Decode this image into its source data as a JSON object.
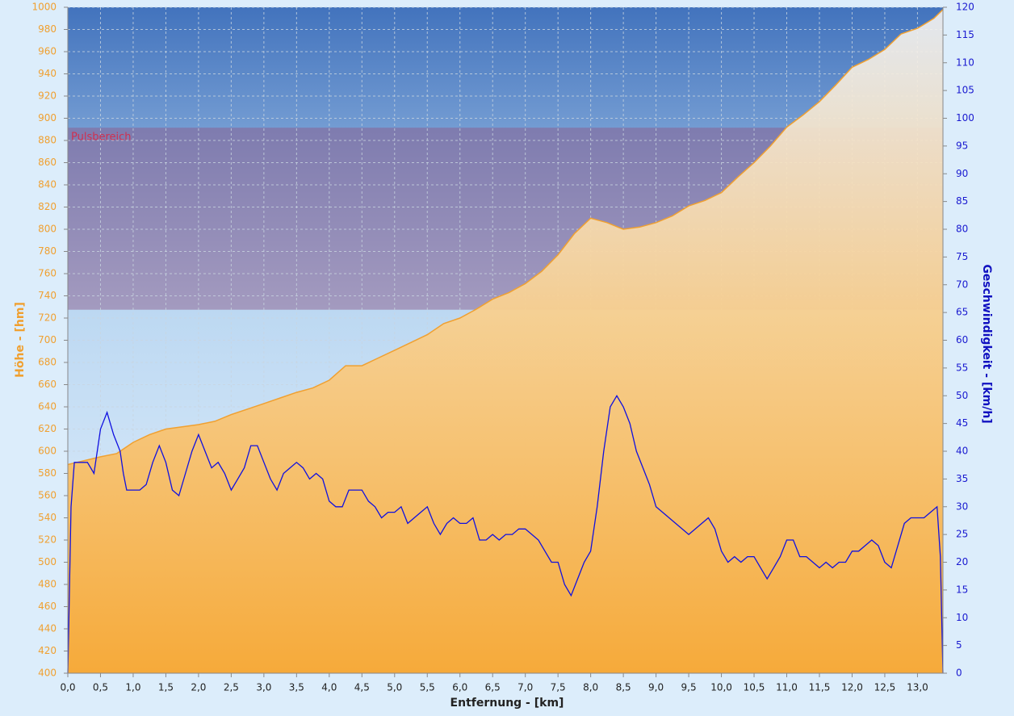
{
  "chart_data": {
    "type": "line",
    "xlabel": "Entfernung - [km]",
    "ylabel": "Höhe - [hm]",
    "y2label": "Geschwindigkeit - [km/h]",
    "xlim": [
      0,
      13.39
    ],
    "ylim": [
      400,
      1000
    ],
    "y2lim": [
      0,
      120
    ],
    "grid": true,
    "xticks": [
      {
        "value": 0,
        "label": "0,0"
      },
      {
        "value": 0.5,
        "label": "0,5"
      },
      {
        "value": 1,
        "label": "1,0"
      },
      {
        "value": 1.5,
        "label": "1,5"
      },
      {
        "value": 2,
        "label": "2,0"
      },
      {
        "value": 2.5,
        "label": "2,5"
      },
      {
        "value": 3,
        "label": "3,0"
      },
      {
        "value": 3.5,
        "label": "3,5"
      },
      {
        "value": 4,
        "label": "4,0"
      },
      {
        "value": 4.5,
        "label": "4,5"
      },
      {
        "value": 5,
        "label": "5,0"
      },
      {
        "value": 5.5,
        "label": "5,5"
      },
      {
        "value": 6,
        "label": "6,0"
      },
      {
        "value": 6.5,
        "label": "6,5"
      },
      {
        "value": 7,
        "label": "7,0"
      },
      {
        "value": 7.5,
        "label": "7,5"
      },
      {
        "value": 8,
        "label": "8,0"
      },
      {
        "value": 8.5,
        "label": "8,5"
      },
      {
        "value": 9,
        "label": "9,0"
      },
      {
        "value": 9.5,
        "label": "9,5"
      },
      {
        "value": 10,
        "label": "10,0"
      },
      {
        "value": 10.5,
        "label": "10,5"
      },
      {
        "value": 11,
        "label": "11,0"
      },
      {
        "value": 11.5,
        "label": "11,5"
      },
      {
        "value": 12,
        "label": "12,0"
      },
      {
        "value": 12.5,
        "label": "12,5"
      },
      {
        "value": 13,
        "label": "13,0"
      }
    ],
    "yticks": [
      400,
      420,
      440,
      460,
      480,
      500,
      520,
      540,
      560,
      580,
      600,
      620,
      640,
      660,
      680,
      700,
      720,
      740,
      760,
      780,
      800,
      820,
      840,
      860,
      880,
      900,
      920,
      940,
      960,
      980,
      1000
    ],
    "y2ticks": [
      0,
      5,
      10,
      15,
      20,
      25,
      30,
      35,
      40,
      45,
      50,
      55,
      60,
      65,
      70,
      75,
      80,
      85,
      90,
      95,
      100,
      105,
      110,
      115,
      120
    ],
    "band": {
      "label": "Pulsbereich",
      "from": 65.5,
      "to": 98.3,
      "axis": "y2",
      "color": "#8a5c8c"
    },
    "series": [
      {
        "name": "Höhe",
        "kind": "area",
        "color": "#f0a030",
        "x": [
          0,
          0.5,
          0.75,
          1,
          1.25,
          1.5,
          1.75,
          2,
          2.25,
          2.5,
          2.75,
          3,
          3.25,
          3.5,
          3.75,
          4,
          4.25,
          4.5,
          4.75,
          5,
          5.25,
          5.5,
          5.75,
          6,
          6.25,
          6.5,
          6.75,
          7,
          7.25,
          7.5,
          7.75,
          8,
          8.25,
          8.5,
          8.75,
          9,
          9.25,
          9.5,
          9.75,
          10,
          10.25,
          10.5,
          10.75,
          11,
          11.25,
          11.5,
          11.75,
          12,
          12.25,
          12.5,
          12.75,
          13,
          13.25,
          13.39
        ],
        "values": [
          588,
          595,
          598,
          608,
          615,
          620,
          622,
          624,
          627,
          633,
          638,
          643,
          648,
          653,
          657,
          664,
          677,
          677,
          684,
          691,
          698,
          705,
          715,
          720,
          728,
          737,
          743,
          751,
          762,
          777,
          796,
          810,
          806,
          800,
          802,
          806,
          812,
          821,
          826,
          833,
          847,
          860,
          875,
          892,
          903,
          915,
          930,
          946,
          953,
          962,
          976,
          981,
          990,
          998
        ]
      },
      {
        "name": "Geschwindigkeit",
        "kind": "line",
        "axis": "y2",
        "color": "#1010e0",
        "x": [
          0,
          0.05,
          0.1,
          0.2,
          0.3,
          0.4,
          0.5,
          0.6,
          0.7,
          0.8,
          0.85,
          0.9,
          1,
          1.1,
          1.2,
          1.3,
          1.4,
          1.5,
          1.6,
          1.7,
          1.8,
          1.9,
          2,
          2.1,
          2.2,
          2.3,
          2.4,
          2.5,
          2.6,
          2.7,
          2.8,
          2.9,
          3,
          3.1,
          3.2,
          3.3,
          3.4,
          3.5,
          3.6,
          3.7,
          3.8,
          3.9,
          4,
          4.1,
          4.2,
          4.3,
          4.4,
          4.5,
          4.6,
          4.7,
          4.8,
          4.9,
          5,
          5.1,
          5.2,
          5.3,
          5.4,
          5.5,
          5.6,
          5.7,
          5.8,
          5.9,
          6,
          6.1,
          6.2,
          6.3,
          6.4,
          6.5,
          6.6,
          6.7,
          6.8,
          6.9,
          7,
          7.1,
          7.2,
          7.3,
          7.4,
          7.5,
          7.6,
          7.7,
          7.8,
          7.9,
          8,
          8.1,
          8.2,
          8.3,
          8.4,
          8.5,
          8.6,
          8.7,
          8.8,
          8.9,
          9,
          9.1,
          9.2,
          9.3,
          9.4,
          9.5,
          9.6,
          9.7,
          9.8,
          9.9,
          10,
          10.1,
          10.2,
          10.3,
          10.4,
          10.5,
          10.6,
          10.7,
          10.8,
          10.9,
          11,
          11.1,
          11.2,
          11.3,
          11.4,
          11.5,
          11.6,
          11.7,
          11.8,
          11.9,
          12,
          12.1,
          12.2,
          12.3,
          12.4,
          12.5,
          12.6,
          12.7,
          12.8,
          12.9,
          13,
          13.1,
          13.2,
          13.3,
          13.35,
          13.39
        ],
        "values": [
          0,
          30,
          38,
          38,
          38,
          36,
          44,
          47,
          43,
          40,
          36,
          33,
          33,
          33,
          34,
          38,
          41,
          38,
          33,
          32,
          36,
          40,
          43,
          40,
          37,
          38,
          36,
          33,
          35,
          37,
          41,
          41,
          38,
          35,
          33,
          36,
          37,
          38,
          37,
          35,
          36,
          35,
          31,
          30,
          30,
          33,
          33,
          33,
          31,
          30,
          28,
          29,
          29,
          30,
          27,
          28,
          29,
          30,
          27,
          25,
          27,
          28,
          27,
          27,
          28,
          24,
          24,
          25,
          24,
          25,
          25,
          26,
          26,
          25,
          24,
          22,
          20,
          20,
          16,
          14,
          17,
          20,
          22,
          30,
          40,
          48,
          50,
          48,
          45,
          40,
          37,
          34,
          30,
          29,
          28,
          27,
          26,
          25,
          26,
          27,
          28,
          26,
          22,
          20,
          21,
          20,
          21,
          21,
          19,
          17,
          19,
          21,
          24,
          24,
          21,
          21,
          20,
          19,
          20,
          19,
          20,
          20,
          22,
          22,
          23,
          24,
          23,
          20,
          19,
          23,
          27,
          28,
          28,
          28,
          29,
          30,
          21,
          0
        ]
      }
    ]
  }
}
